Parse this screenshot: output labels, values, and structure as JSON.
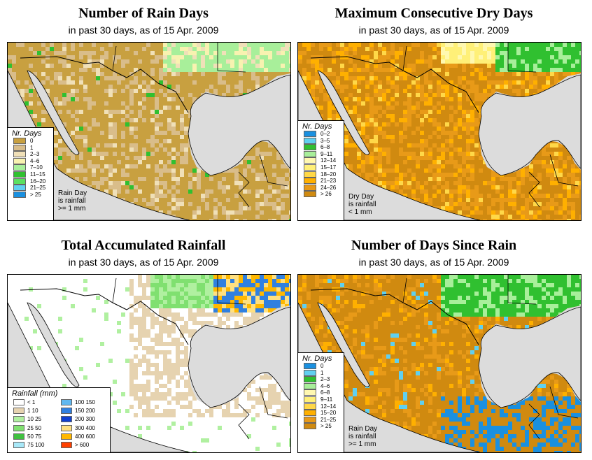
{
  "date_text": "15 Apr. 2009",
  "colors": {
    "ocean": "#dcdcdc",
    "border": "#000000",
    "rain_days": [
      "#c8a040",
      "#d9bd8a",
      "#f0e0b8",
      "#f8f2b0",
      "#a8ef9a",
      "#30c030",
      "#5ae060",
      "#60d0f0",
      "#1a90e0"
    ],
    "dry_days": [
      "#1a90e0",
      "#60d0f0",
      "#30c030",
      "#a8ef9a",
      "#fff8b0",
      "#fff078",
      "#ffd848",
      "#ffb000",
      "#e89a18",
      "#d08a10"
    ],
    "rainfall": [
      "#ffffff",
      "#e6d3b0",
      "#b0f0a0",
      "#80e070",
      "#40c040",
      "#a8e8f8",
      "#60b8f0",
      "#3080e0",
      "#1040d0",
      "#ffe080",
      "#ffb800",
      "#ff4000"
    ]
  },
  "panels": [
    {
      "title": "Number of Rain Days",
      "subtitle": "in past 30 days, as of  15 Apr. 2009",
      "palette_key": "rain_days",
      "legend": {
        "title": "Nr. Days",
        "labels": [
          "0",
          "1",
          "2–3",
          "4–6",
          "7–10",
          "11–15",
          "16–20",
          "21–25",
          "> 25"
        ]
      },
      "note": "Rain Day\nis rainfall\n>= 1 mm",
      "map_name": "rain-days-map"
    },
    {
      "title": "Maximum Consecutive Dry Days",
      "subtitle": "in past 30 days, as of  15 Apr. 2009",
      "palette_key": "dry_days",
      "legend": {
        "title": "Nr. Days",
        "labels": [
          "0–2",
          "3–5",
          "6–8",
          "9–11",
          "12–14",
          "15–17",
          "18–20",
          "21–23",
          "24–26",
          "> 26"
        ]
      },
      "note": "Dry Day\nis rainfall\n< 1 mm",
      "map_name": "dry-days-map"
    },
    {
      "title": "Total Accumulated Rainfall",
      "subtitle": "in past 30 days, as of  15 Apr. 2009",
      "palette_key": "rainfall",
      "legend": {
        "title": "Rainfall (mm)",
        "left_labels": [
          "< 1",
          "1    10",
          "10    25",
          "25    50",
          "50    75",
          "75   100"
        ],
        "right_labels": [
          "100   150",
          "150   200",
          "200   300",
          "300   400",
          "400   600",
          "> 600"
        ]
      },
      "note": "",
      "map_name": "rainfall-map"
    },
    {
      "title": "Number of Days Since Rain",
      "subtitle": "in past 30 days, as of  15 Apr. 2009",
      "palette_key": "since_rain",
      "legend": {
        "title": "Nr. Days",
        "labels": [
          "0",
          "1",
          "2–3",
          "4–6",
          "6–8",
          "9–11",
          "12–14",
          "15–20",
          "21–25",
          "> 25"
        ]
      },
      "note": "Rain Day\nis rainfall\n>= 1 mm",
      "map_name": "since-rain-map"
    }
  ],
  "since_rain_colors": [
    "#1a90e0",
    "#60d0f0",
    "#30c030",
    "#a8ef9a",
    "#fff8b0",
    "#fff078",
    "#ffd848",
    "#ffb000",
    "#e89a18",
    "#d08a10"
  ]
}
